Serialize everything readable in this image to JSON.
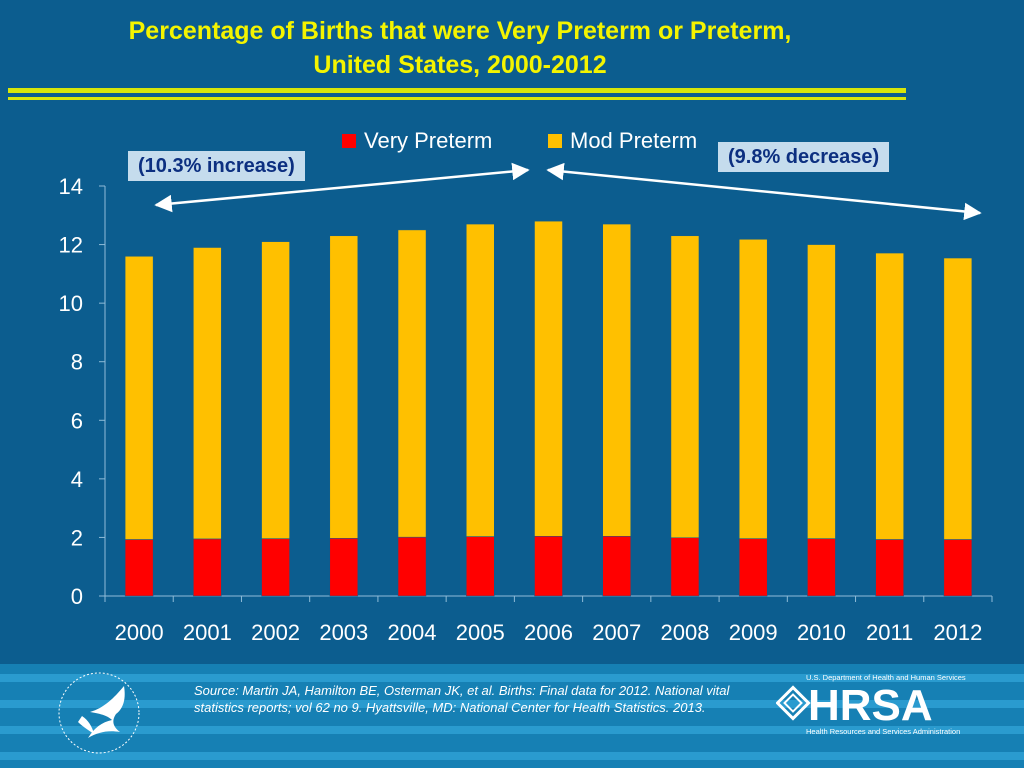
{
  "title_line1": "Percentage of Births that were Very Preterm or Preterm,",
  "title_line2": "United States, 2000-2012",
  "callouts": {
    "increase": "(10.3% increase)",
    "decrease": "(9.8% decrease)"
  },
  "source": "Source: Martin JA, Hamilton BE, Osterman JK, et al. Births: Final data for 2012. National vital statistics reports; vol 62 no 9. Hyattsville, MD: National Center for Health Statistics. 2013.",
  "hrsa": {
    "dept": "U.S. Department of Health and Human Services",
    "name": "HRSA",
    "subtitle": "Health Resources and Services Administration"
  },
  "colors": {
    "very_preterm": "#ff0000",
    "mod_preterm": "#ffc000",
    "background": "#0c5d8f",
    "title": "#f4f400"
  },
  "chart_data": {
    "type": "bar",
    "stacked": true,
    "categories": [
      "2000",
      "2001",
      "2002",
      "2003",
      "2004",
      "2005",
      "2006",
      "2007",
      "2008",
      "2009",
      "2010",
      "2011",
      "2012"
    ],
    "series": [
      {
        "name": "Very Preterm",
        "values": [
          1.93,
          1.95,
          1.96,
          1.97,
          2.01,
          2.03,
          2.04,
          2.04,
          1.99,
          1.96,
          1.96,
          1.93,
          1.93
        ]
      },
      {
        "name": "Mod Preterm",
        "values": [
          9.67,
          9.95,
          10.14,
          10.33,
          10.49,
          10.67,
          10.76,
          10.66,
          10.31,
          10.22,
          10.04,
          9.78,
          9.61
        ]
      }
    ],
    "yticks": [
      "0",
      "2",
      "4",
      "6",
      "8",
      "10",
      "12",
      "14"
    ],
    "ylim": [
      0,
      14
    ],
    "legend": "top",
    "grid": false
  }
}
